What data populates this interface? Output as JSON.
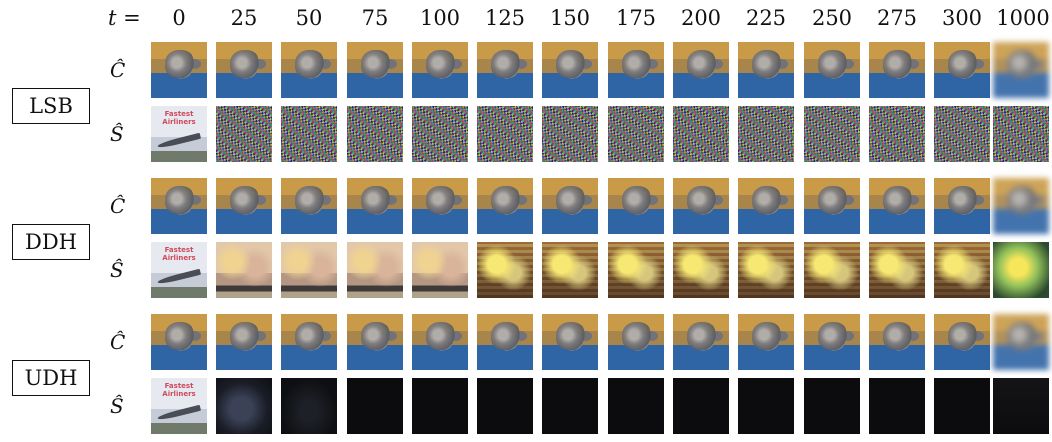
{
  "header": {
    "t_label": "t =",
    "timesteps": [
      "0",
      "25",
      "50",
      "75",
      "100",
      "125",
      "150",
      "175",
      "200",
      "225",
      "250",
      "275",
      "300",
      "1000"
    ]
  },
  "rows": {
    "cover_label": "Ĉ",
    "secret_label": "Ŝ"
  },
  "methods": [
    {
      "name": "LSB"
    },
    {
      "name": "DDH"
    },
    {
      "name": "UDH"
    }
  ]
}
